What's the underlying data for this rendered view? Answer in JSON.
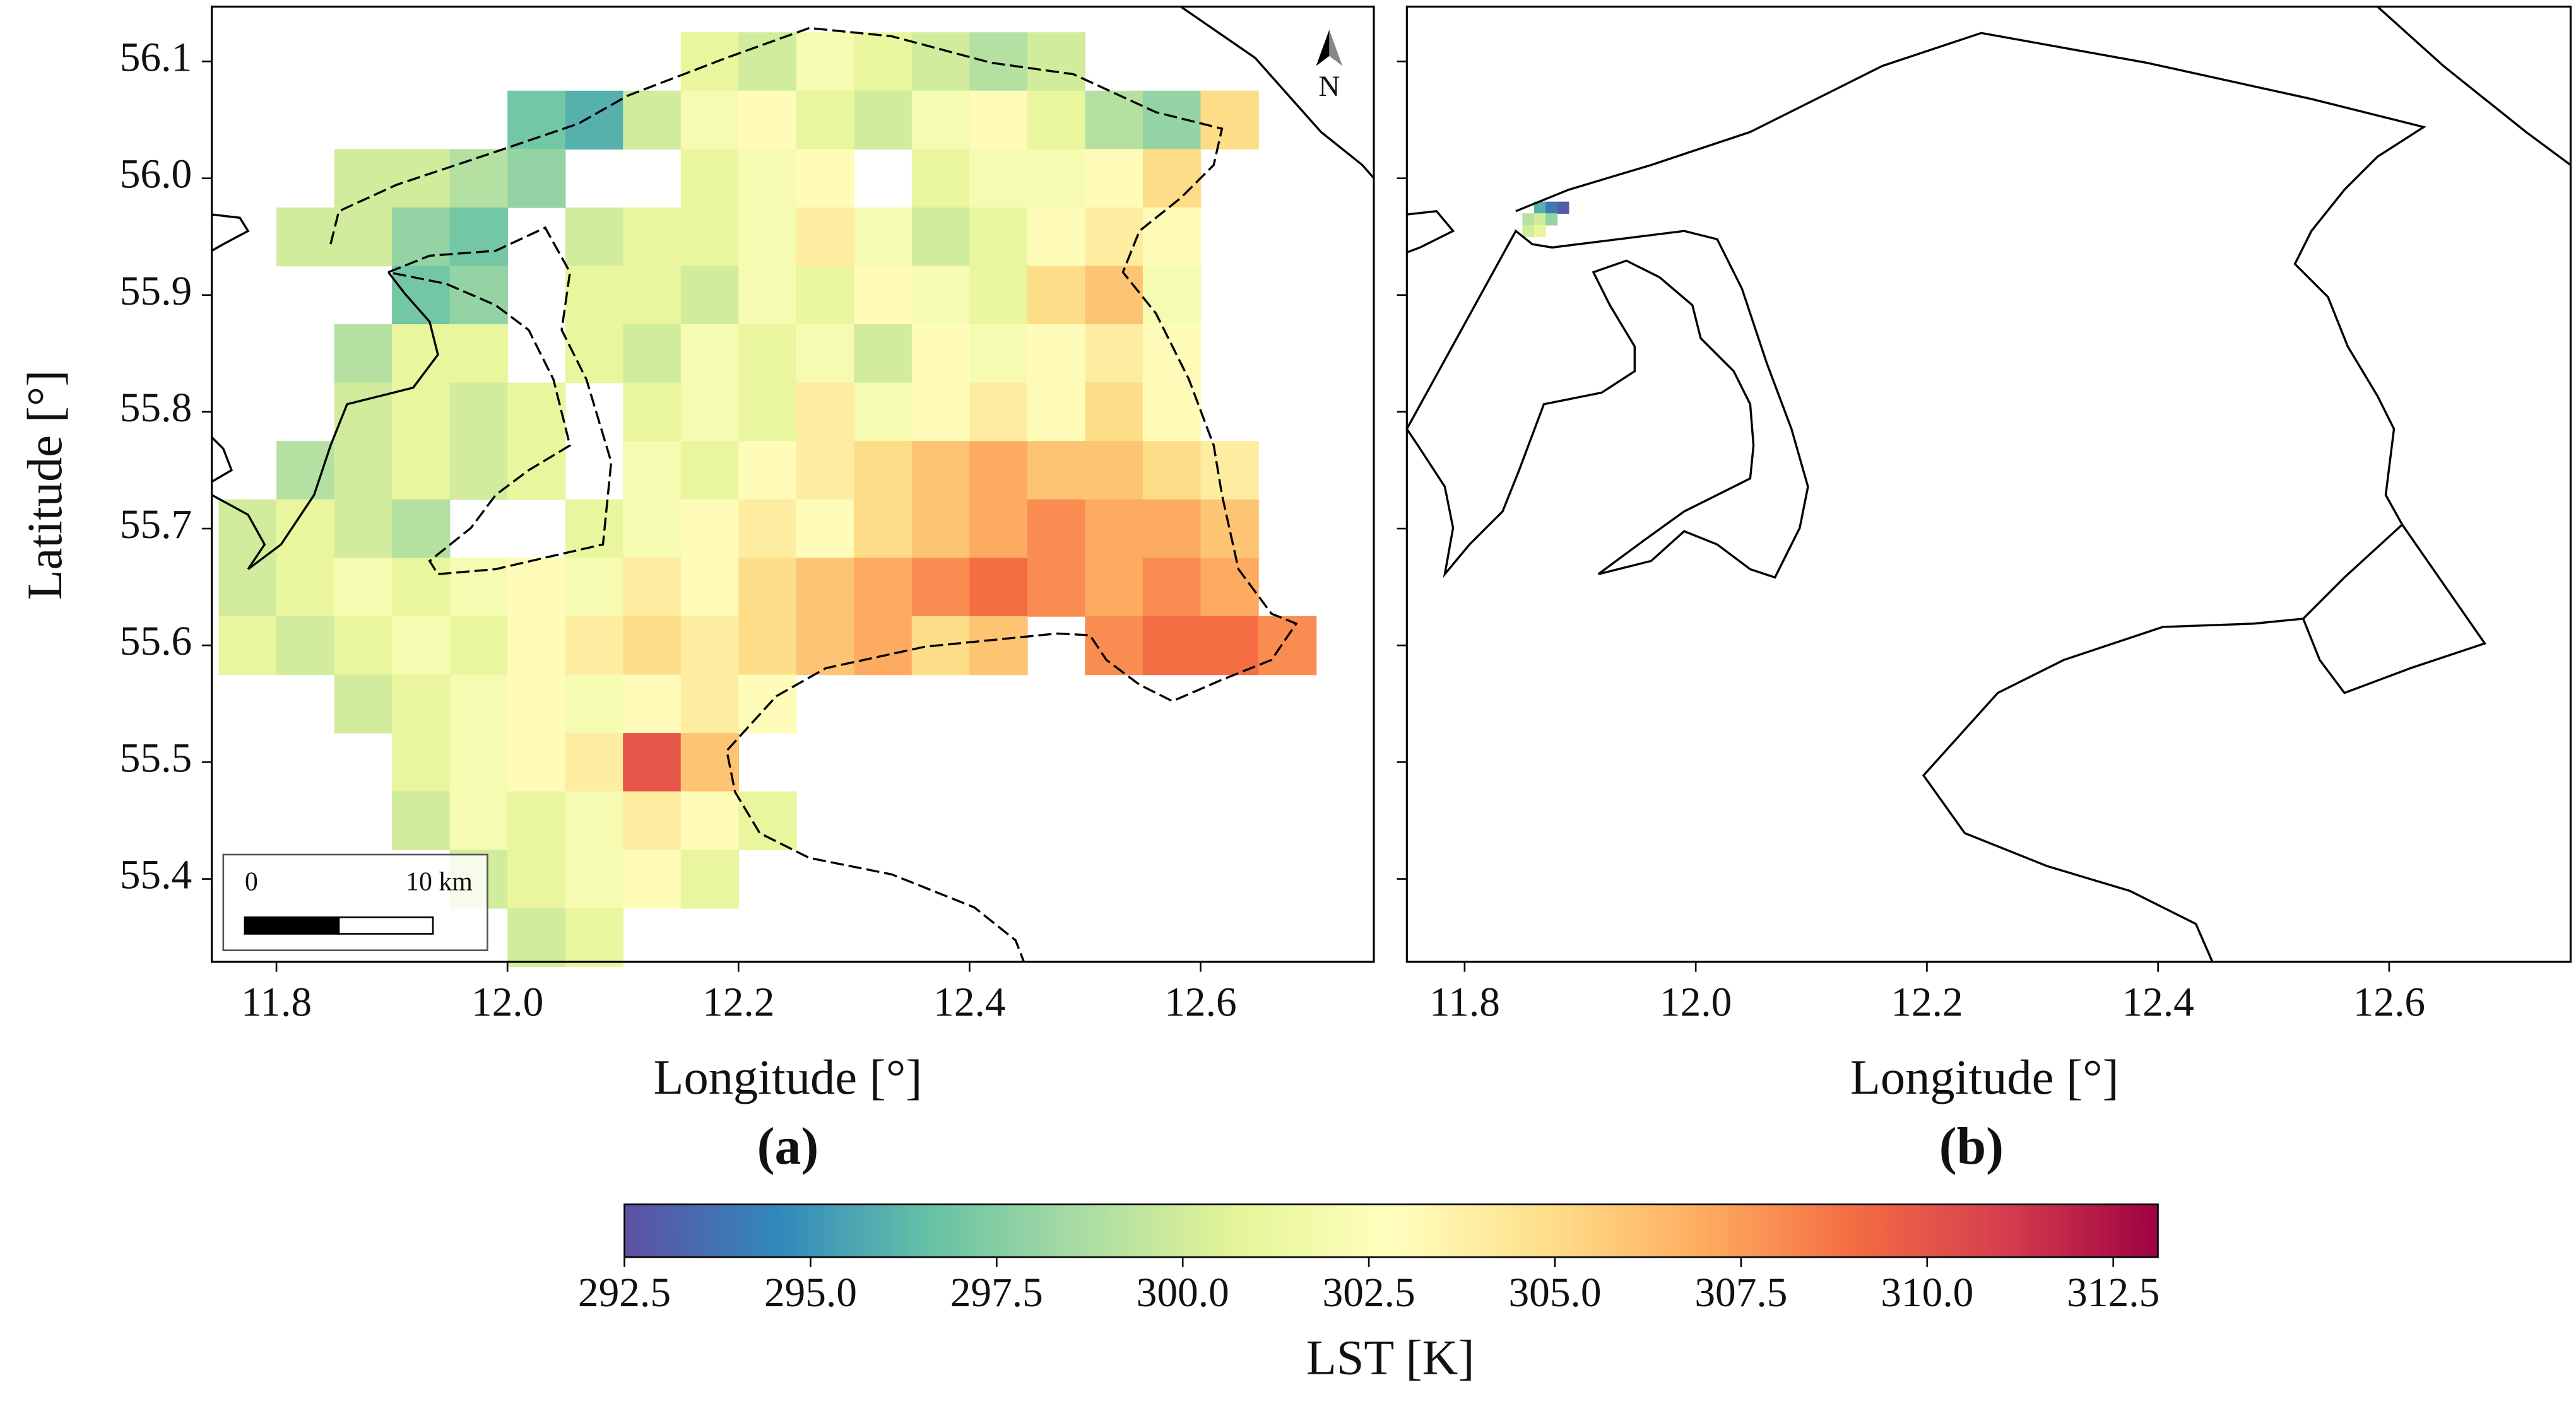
{
  "panels": [
    {
      "label": "(a)",
      "xlabel": "Longitude [°]",
      "ylabel": "Latitude [°]",
      "xlim": [
        11.744,
        12.75
      ],
      "ylim": [
        55.329,
        56.147
      ],
      "xticks": [
        11.8,
        {
          "value": 12.0,
          "label": "12.0"
        },
        12.2,
        12.4,
        12.6
      ],
      "yticks": [
        55.4,
        55.5,
        55.6,
        55.7,
        55.8,
        55.9,
        {
          "value": 56.0,
          "label": "56.0"
        },
        56.1
      ],
      "north": "N",
      "scalebar": [
        "0",
        "10 km"
      ],
      "lon": [
        11.775,
        11.825,
        11.875,
        11.925,
        11.975,
        12.025,
        12.075,
        12.125,
        12.175,
        12.225,
        12.275,
        12.325,
        12.375,
        12.425,
        12.475,
        12.525,
        12.575,
        12.625,
        12.675,
        12.725
      ],
      "lat": [
        56.1,
        56.05,
        56.0,
        55.95,
        55.9,
        55.85,
        55.8,
        55.75,
        55.7,
        55.65,
        55.6,
        55.55,
        55.5,
        55.45,
        55.4,
        55.35
      ],
      "lst": [
        [
          null,
          null,
          null,
          null,
          null,
          null,
          null,
          null,
          301,
          300,
          302,
          301,
          300,
          299,
          300,
          null,
          null,
          null,
          null,
          null
        ],
        [
          null,
          null,
          null,
          null,
          null,
          297,
          296,
          300,
          302,
          303,
          301,
          300,
          302,
          303,
          301,
          299,
          298,
          305,
          null,
          null
        ],
        [
          null,
          null,
          300,
          300,
          299,
          298,
          null,
          null,
          301,
          302,
          303,
          null,
          301,
          302,
          302,
          303,
          305,
          null,
          null,
          null
        ],
        [
          null,
          300,
          300,
          298,
          297,
          null,
          300,
          301,
          301,
          302,
          304,
          302,
          300,
          301,
          303,
          304,
          303,
          null,
          null,
          null
        ],
        [
          null,
          null,
          null,
          297,
          298,
          null,
          301,
          301,
          300,
          302,
          301,
          303,
          302,
          301,
          305,
          306,
          302,
          null,
          null,
          null
        ],
        [
          null,
          null,
          299,
          301,
          301,
          null,
          301,
          300,
          302,
          301,
          302,
          300,
          303,
          302,
          303,
          304,
          303,
          null,
          null,
          null
        ],
        [
          null,
          null,
          300,
          301,
          300,
          301,
          null,
          301,
          302,
          301,
          304,
          302,
          303,
          304,
          303,
          305,
          303,
          null,
          null,
          null
        ],
        [
          null,
          299,
          300,
          301,
          300,
          301,
          null,
          302,
          301,
          303,
          304,
          305,
          306,
          307,
          306,
          306,
          305,
          304,
          null,
          null
        ],
        [
          300,
          301,
          300,
          299,
          null,
          null,
          301,
          302,
          303,
          304,
          303,
          305,
          306,
          307,
          308,
          307,
          307,
          306,
          null,
          null
        ],
        [
          300,
          301,
          302,
          301,
          302,
          303,
          302,
          304,
          303,
          305,
          306,
          307,
          308,
          309,
          308,
          307,
          308,
          307,
          null,
          null
        ],
        [
          301,
          300,
          301,
          302,
          301,
          303,
          304,
          305,
          304,
          305,
          306,
          307,
          305,
          306,
          null,
          308,
          309,
          309,
          308,
          null
        ],
        [
          null,
          null,
          300,
          301,
          302,
          303,
          302,
          303,
          304,
          303,
          null,
          null,
          null,
          null,
          null,
          null,
          null,
          null,
          null,
          null
        ],
        [
          null,
          null,
          null,
          301,
          302,
          303,
          304,
          310,
          306,
          null,
          null,
          null,
          null,
          null,
          null,
          null,
          null,
          null,
          null,
          null
        ],
        [
          null,
          null,
          null,
          300,
          302,
          301,
          302,
          304,
          303,
          301,
          null,
          null,
          null,
          null,
          null,
          null,
          null,
          null,
          null,
          null
        ],
        [
          null,
          null,
          null,
          null,
          300,
          301,
          302,
          303,
          301,
          null,
          null,
          null,
          null,
          null,
          null,
          null,
          null,
          null,
          null,
          null
        ],
        [
          null,
          null,
          null,
          null,
          null,
          300,
          301,
          null,
          null,
          null,
          null,
          null,
          null,
          null,
          null,
          null,
          null,
          null,
          null,
          null
        ]
      ]
    },
    {
      "label": "(b)",
      "xlabel": "Longitude [°]",
      "xlim": [
        11.75,
        12.757
      ],
      "ylim": [
        55.329,
        56.147
      ],
      "xticks": [
        11.8,
        {
          "value": 12.0,
          "label": "12.0"
        },
        12.2,
        12.4,
        12.6
      ],
      "lon": [
        11.855,
        11.865,
        11.875,
        11.885
      ],
      "lat": [
        55.975,
        55.965,
        55.955
      ],
      "lst": [
        [
          null,
          296,
          294,
          293
        ],
        [
          299,
          300,
          298,
          null
        ],
        [
          300,
          301,
          null,
          null
        ]
      ]
    }
  ],
  "colorbar": {
    "label": "LST [K]",
    "lim": [
      292.5,
      313.1
    ],
    "ticks": [
      292.5,
      {
        "value": 295.0,
        "label": "295.0"
      },
      297.5,
      {
        "value": 300.0,
        "label": "300.0"
      },
      302.5,
      {
        "value": 305.0,
        "label": "305.0"
      },
      307.5,
      {
        "value": 310.0,
        "label": "310.0"
      },
      312.5
    ],
    "colors": [
      "#5e4fa2",
      "#3288bd",
      "#66c2a5",
      "#abdda4",
      "#e6f598",
      "#ffffbf",
      "#fee08b",
      "#fdae61",
      "#f46d43",
      "#d53e4f",
      "#9e0142"
    ]
  }
}
